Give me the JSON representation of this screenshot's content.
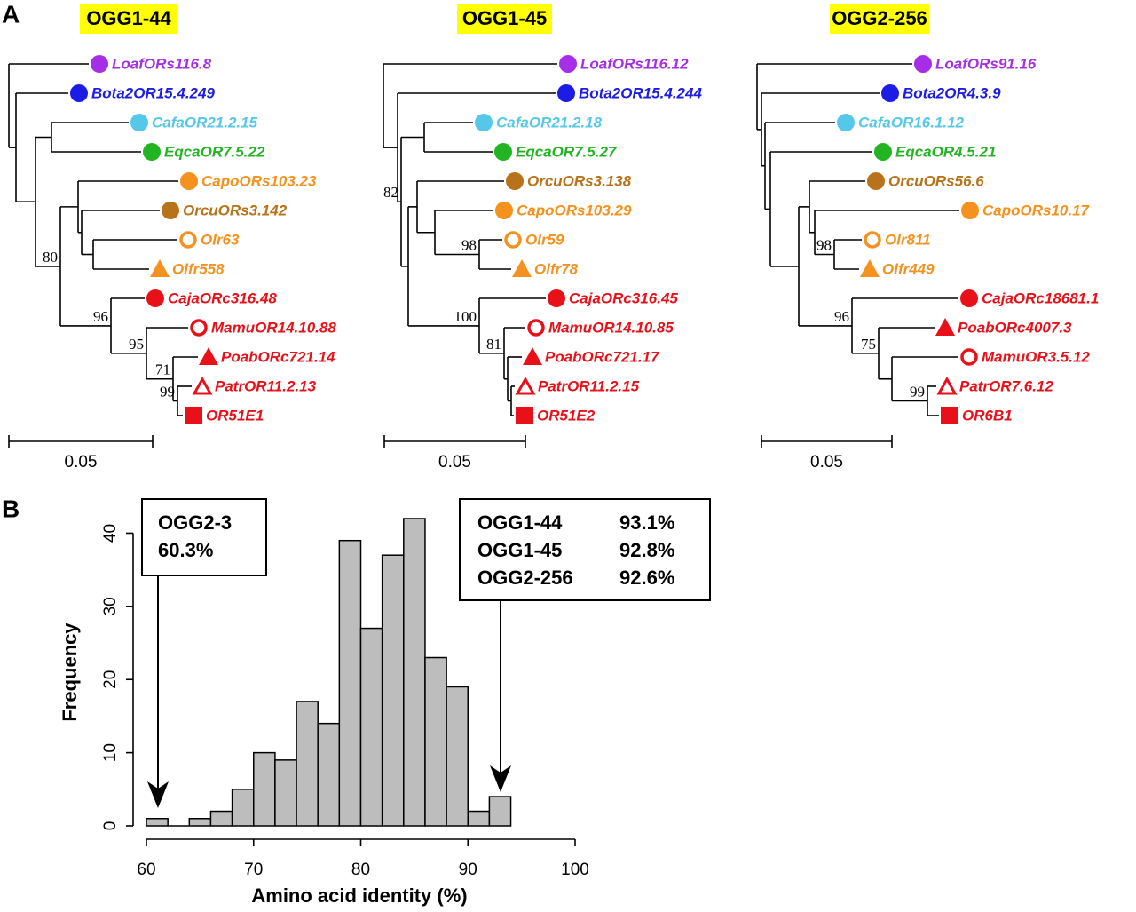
{
  "panel_a": {
    "label": "A",
    "trees": [
      {
        "title": "OGG1-44",
        "scale": "0.05",
        "bootstrap": [
          "80",
          "96",
          "95",
          "71",
          "99"
        ],
        "leaves": [
          {
            "name": "LoafORs116.8",
            "color": "#a62ee6"
          },
          {
            "name": "Bota2OR15.4.249",
            "color": "#1c1ce6"
          },
          {
            "name": "CafaOR21.2.15",
            "color": "#55c8ea"
          },
          {
            "name": "EqcaOR7.5.22",
            "color": "#23b423"
          },
          {
            "name": "CapoORs103.23",
            "color": "#f5921e"
          },
          {
            "name": "OrcuORs3.142",
            "color": "#b8731a"
          },
          {
            "name": "Olr63",
            "color": "#f5921e"
          },
          {
            "name": "Olfr558",
            "color": "#f5921e"
          },
          {
            "name": "CajaORc316.48",
            "color": "#e8111a"
          },
          {
            "name": "MamuOR14.10.88",
            "color": "#e8111a"
          },
          {
            "name": "PoabORc721.14",
            "color": "#e8111a"
          },
          {
            "name": "PatrOR11.2.13",
            "color": "#e8111a"
          },
          {
            "name": "OR51E1",
            "color": "#e8111a"
          }
        ]
      },
      {
        "title": "OGG1-45",
        "scale": "0.05",
        "bootstrap": [
          "82",
          "98",
          "100",
          "81"
        ],
        "leaves": [
          {
            "name": "LoafORs116.12",
            "color": "#a62ee6"
          },
          {
            "name": "Bota2OR15.4.244",
            "color": "#1c1ce6"
          },
          {
            "name": "CafaOR21.2.18",
            "color": "#55c8ea"
          },
          {
            "name": "EqcaOR7.5.27",
            "color": "#23b423"
          },
          {
            "name": "OrcuORs3.138",
            "color": "#b8731a"
          },
          {
            "name": "CapoORs103.29",
            "color": "#f5921e"
          },
          {
            "name": "Olr59",
            "color": "#f5921e"
          },
          {
            "name": "Olfr78",
            "color": "#f5921e"
          },
          {
            "name": "CajaORc316.45",
            "color": "#e8111a"
          },
          {
            "name": "MamuOR14.10.85",
            "color": "#e8111a"
          },
          {
            "name": "PoabORc721.17",
            "color": "#e8111a"
          },
          {
            "name": "PatrOR11.2.15",
            "color": "#e8111a"
          },
          {
            "name": "OR51E2",
            "color": "#e8111a"
          }
        ]
      },
      {
        "title": "OGG2-256",
        "scale": "0.05",
        "bootstrap": [
          "98",
          "96",
          "75",
          "99"
        ],
        "leaves": [
          {
            "name": "LoafORs91.16",
            "color": "#a62ee6"
          },
          {
            "name": "Bota2OR4.3.9",
            "color": "#1c1ce6"
          },
          {
            "name": "CafaOR16.1.12",
            "color": "#55c8ea"
          },
          {
            "name": "EqcaOR4.5.21",
            "color": "#23b423"
          },
          {
            "name": "OrcuORs56.6",
            "color": "#b8731a"
          },
          {
            "name": "CapoORs10.17",
            "color": "#f5921e"
          },
          {
            "name": "Olr811",
            "color": "#f5921e"
          },
          {
            "name": "Olfr449",
            "color": "#f5921e"
          },
          {
            "name": "CajaORc18681.1",
            "color": "#e8111a"
          },
          {
            "name": "PoabORc4007.3",
            "color": "#e8111a"
          },
          {
            "name": "MamuOR3.5.12",
            "color": "#e8111a"
          },
          {
            "name": "PatrOR7.6.12",
            "color": "#e8111a"
          },
          {
            "name": "OR6B1",
            "color": "#e8111a"
          }
        ]
      }
    ]
  },
  "panel_b": {
    "label": "B"
  },
  "chart_data": {
    "type": "histogram",
    "xlabel": "Amino acid identity (%)",
    "ylabel": "Frequency",
    "bins": [
      60,
      62,
      64,
      66,
      68,
      70,
      72,
      74,
      76,
      78,
      80,
      82,
      84,
      86,
      88,
      90,
      92,
      94
    ],
    "values": [
      1,
      0,
      1,
      2,
      5,
      10,
      9,
      17,
      14,
      39,
      27,
      37,
      42,
      23,
      19,
      2,
      4
    ],
    "color": "#bdbdbd",
    "xlim": [
      60,
      100
    ],
    "ylim": [
      0,
      42
    ],
    "xticks": [
      60,
      70,
      80,
      90,
      100
    ],
    "yticks": [
      0,
      10,
      20,
      30,
      40
    ],
    "annotations": [
      {
        "rows": [
          [
            "OGG2-3"
          ],
          [
            "60.3%"
          ]
        ]
      },
      {
        "rows": [
          [
            "OGG1-44",
            "93.1%"
          ],
          [
            "OGG1-45",
            "92.8%"
          ],
          [
            "OGG2-256",
            "92.6%"
          ]
        ]
      }
    ]
  }
}
